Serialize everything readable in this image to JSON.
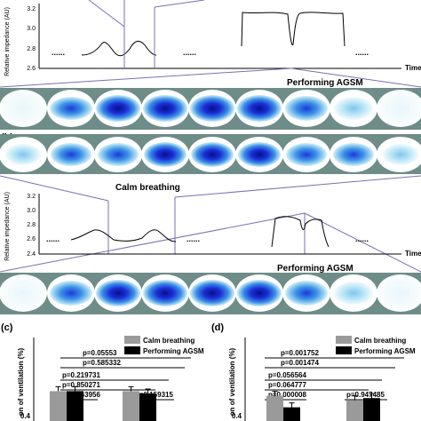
{
  "panel_a": {
    "ylabel": "Relative impedance (AU)",
    "yticks": [
      "3.2",
      "3.0",
      "2.8",
      "2.6"
    ],
    "time_label": "Time",
    "ellipsis": "......",
    "caption": "Performing AGSM"
  },
  "panel_b": {
    "letter": "(b)",
    "header": "Calm breathing",
    "ylabel": "Relative impedance (AU)",
    "yticks": [
      "3.2",
      "3.0",
      "2.8",
      "2.6",
      "2.4"
    ],
    "time_label": "Time",
    "ellipsis": "......",
    "caption": "Performing AGSM"
  },
  "panel_c": {
    "letter": "(c)",
    "ylabel": "on of ventilation (%)",
    "ytick": "0.4",
    "legend": [
      "Calm breathing",
      "Performing AGSM"
    ],
    "pvalues": [
      "p=0.05553",
      "p=0.585332",
      "p=0.219731",
      "p=0.850271",
      "p=0.463956",
      "p=0.159315"
    ]
  },
  "panel_d": {
    "letter": "(d)",
    "ylabel": "on of ventilation (%)",
    "ytick": "0.4",
    "legend": [
      "Calm breathing",
      "Performing AGSM"
    ],
    "pvalues": [
      "p=0.001752",
      "p=0.001474",
      "p=0.056564",
      "p=0.064777",
      "p=0.000008",
      "p=0.947485"
    ]
  },
  "colors": {
    "calm": "#9a9a9a",
    "agsm": "#000000",
    "link": "#7b6fb3",
    "image_bg": "#6e8c88"
  },
  "chart_data": [
    {
      "type": "bar",
      "title": "(c)",
      "ylabel": "on of ventilation (%)",
      "series": [
        {
          "name": "Calm breathing",
          "values": [
            0.51,
            0.51
          ]
        },
        {
          "name": "Performing AGSM",
          "values": [
            0.51,
            0.5
          ]
        }
      ],
      "pvalues": [
        "p=0.05553",
        "p=0.585332",
        "p=0.219731",
        "p=0.850271",
        "p=0.463956",
        "p=0.159315"
      ]
    },
    {
      "type": "bar",
      "title": "(d)",
      "ylabel": "on of ventilation (%)",
      "series": [
        {
          "name": "Calm breathing",
          "values": [
            0.49,
            0.47
          ]
        },
        {
          "name": "Performing AGSM",
          "values": [
            0.44,
            0.48
          ]
        }
      ],
      "pvalues": [
        "p=0.001752",
        "p=0.001474",
        "p=0.056564",
        "p=0.064777",
        "p=0.000008",
        "p=0.947485"
      ]
    }
  ]
}
